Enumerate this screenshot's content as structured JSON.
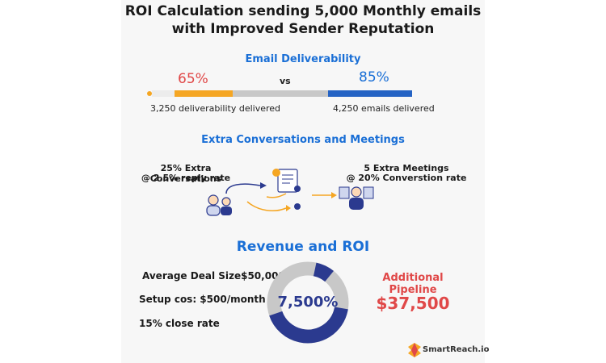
{
  "title": {
    "line1": "ROI Calculation sending 5,000 Monthly emails",
    "line2": "with Improved Sender Reputation"
  },
  "deliverability": {
    "heading": "Email Deliverability",
    "before_pct": "65%",
    "vs": "vs",
    "after_pct": "85%",
    "before_caption": "3,250 deliverability delivered",
    "after_caption": "4,250 emails delivered"
  },
  "conversations": {
    "heading": "Extra Conversations and Meetings",
    "left_line1": "25% Extra Conversations",
    "left_line2": "@ 2.5% reply rate",
    "right_line1": "5 Extra Meetings",
    "right_line2": "@ 20% Converstion rate"
  },
  "revenue": {
    "heading": "Revenue and ROI",
    "deal_size": "Average Deal Size$50,000",
    "setup_cost": "Setup cos: $500/month",
    "close_rate": "15% close rate",
    "roi_value": "7,500%",
    "pipeline_label": "Additional Pipeline",
    "pipeline_value": "$37,500"
  },
  "brand": {
    "logo_text": "SmartReach.io"
  },
  "colors": {
    "blue": "#1a6fd6",
    "red": "#e04848",
    "orange": "#f5a623",
    "navy": "#2b3a8f",
    "gray": "#c8c8c8"
  }
}
